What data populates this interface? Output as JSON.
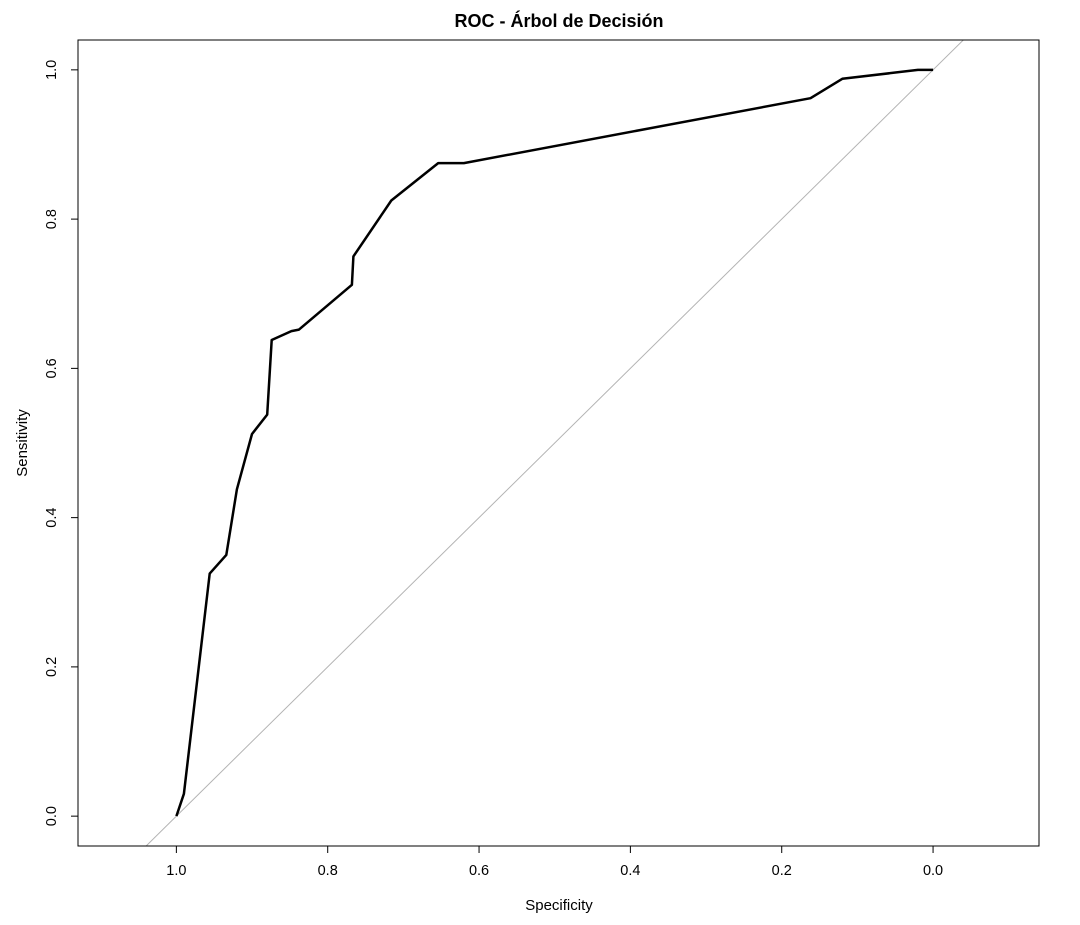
{
  "chart_data": {
    "type": "line",
    "title": "ROC - Árbol de Decisión",
    "xlabel": "Specificity",
    "ylabel": "Sensitivity",
    "x_reversed": true,
    "xlim": [
      1.13,
      -0.14
    ],
    "ylim": [
      -0.04,
      1.04
    ],
    "xticks": [
      1.0,
      0.8,
      0.6,
      0.4,
      0.2,
      0.0
    ],
    "xtick_labels": [
      "1.0",
      "0.8",
      "0.6",
      "0.4",
      "0.2",
      "0.0"
    ],
    "yticks": [
      0.0,
      0.2,
      0.4,
      0.6,
      0.8,
      1.0
    ],
    "ytick_labels": [
      "0.0",
      "0.2",
      "0.4",
      "0.6",
      "0.8",
      "1.0"
    ],
    "grid": false,
    "series": [
      {
        "color": "#000000",
        "points": [
          [
            1.0,
            0.0
          ],
          [
            0.99,
            0.03
          ],
          [
            0.956,
            0.325
          ],
          [
            0.934,
            0.35
          ],
          [
            0.92,
            0.438
          ],
          [
            0.9,
            0.512
          ],
          [
            0.88,
            0.538
          ],
          [
            0.874,
            0.638
          ],
          [
            0.848,
            0.65
          ],
          [
            0.838,
            0.652
          ],
          [
            0.768,
            0.712
          ],
          [
            0.766,
            0.75
          ],
          [
            0.716,
            0.825
          ],
          [
            0.654,
            0.875
          ],
          [
            0.62,
            0.875
          ],
          [
            0.162,
            0.962
          ],
          [
            0.12,
            0.988
          ],
          [
            0.02,
            1.0
          ],
          [
            0.0,
            1.0
          ]
        ]
      }
    ],
    "reference_line": {
      "color": "#b3b3b3",
      "from": [
        1.0,
        0.0
      ],
      "to": [
        0.0,
        1.0
      ]
    }
  }
}
